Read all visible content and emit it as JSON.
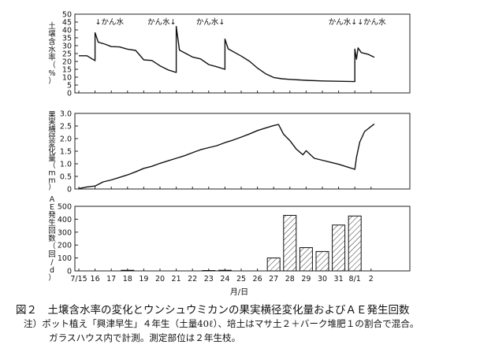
{
  "chart_data": [
    {
      "type": "line",
      "ylabel": "土壌含水率（%）",
      "ylim": [
        0,
        50
      ],
      "yticks": [
        0,
        5,
        10,
        15,
        20,
        25,
        30,
        35,
        40,
        45,
        50
      ],
      "x_range": [
        "7/15",
        "8/2"
      ],
      "annotations": [
        {
          "x": "7/16",
          "text": "↓かん水"
        },
        {
          "x": "7/21",
          "text": "かん水↓"
        },
        {
          "x": "7/24",
          "text": "かん水↓"
        },
        {
          "x": "8/1",
          "text": "かん水↓↓かん水"
        }
      ],
      "series": [
        {
          "points": [
            [
              "7/15",
              23.6
            ],
            [
              "7/15.5",
              23.6
            ],
            [
              "7/16",
              20.5
            ],
            [
              "7/16",
              38.2
            ],
            [
              "7/16.2",
              32.2
            ],
            [
              "7/16.6",
              31.0
            ],
            [
              "7/17",
              29.4
            ],
            [
              "7/17.5",
              29.2
            ],
            [
              "7/18",
              27.8
            ],
            [
              "7/18.5",
              27.0
            ],
            [
              "7/19",
              21.0
            ],
            [
              "7/19.5",
              20.6
            ],
            [
              "7/20",
              17.2
            ],
            [
              "7/20.5",
              14.6
            ],
            [
              "7/21",
              13.0
            ],
            [
              "7/21",
              42.2
            ],
            [
              "7/21.2",
              27.2
            ],
            [
              "7/22",
              22.8
            ],
            [
              "7/22.5",
              21.6
            ],
            [
              "7/23",
              18.0
            ],
            [
              "7/23.5",
              16.6
            ],
            [
              "7/24",
              15.0
            ],
            [
              "7/24",
              34.2
            ],
            [
              "7/24.2",
              28.0
            ],
            [
              "7/25",
              23.4
            ],
            [
              "7/25.5",
              20.2
            ],
            [
              "7/26",
              15.8
            ],
            [
              "7/26.5",
              12.2
            ],
            [
              "7/27",
              9.8
            ],
            [
              "7/27.5",
              9.0
            ],
            [
              "7/28",
              8.6
            ],
            [
              "7/29",
              8.0
            ],
            [
              "7/30",
              7.6
            ],
            [
              "7/31",
              7.4
            ],
            [
              "8/1",
              7.2
            ],
            [
              "8/1",
              27.8
            ],
            [
              "8/1.1",
              21.4
            ],
            [
              "8/1.2",
              28.6
            ],
            [
              "8/1.4",
              25.6
            ],
            [
              "8/1.8",
              24.6
            ],
            [
              "8/2.2",
              22.6
            ]
          ]
        }
      ]
    },
    {
      "type": "line",
      "ylabel": "果実横径変化量（mm）",
      "ylim": [
        0,
        3
      ],
      "yticks": [
        "0",
        "0.5",
        "1.0",
        "1.5",
        "2.0",
        "2.5",
        "3.0"
      ],
      "x_range": [
        "7/15",
        "8/2"
      ],
      "series": [
        {
          "points": [
            [
              "7/15",
              0.02
            ],
            [
              "7/15.5",
              0.08
            ],
            [
              "7/16",
              0.12
            ],
            [
              "7/16.5",
              0.28
            ],
            [
              "7/17",
              0.36
            ],
            [
              "7/17.5",
              0.46
            ],
            [
              "7/18",
              0.56
            ],
            [
              "7/18.5",
              0.68
            ],
            [
              "7/19",
              0.82
            ],
            [
              "7/19.5",
              0.9
            ],
            [
              "7/20",
              1.02
            ],
            [
              "7/20.5",
              1.12
            ],
            [
              "7/21",
              1.22
            ],
            [
              "7/21.5",
              1.32
            ],
            [
              "7/22",
              1.44
            ],
            [
              "7/22.5",
              1.56
            ],
            [
              "7/23",
              1.64
            ],
            [
              "7/23.5",
              1.72
            ],
            [
              "7/24",
              1.84
            ],
            [
              "7/24.5",
              1.94
            ],
            [
              "7/25",
              2.06
            ],
            [
              "7/25.5",
              2.18
            ],
            [
              "7/26",
              2.32
            ],
            [
              "7/26.5",
              2.42
            ],
            [
              "7/27",
              2.52
            ],
            [
              "7/27.3",
              2.56
            ],
            [
              "7/27.6",
              2.18
            ],
            [
              "7/28",
              1.92
            ],
            [
              "7/28.4",
              1.58
            ],
            [
              "7/28.8",
              1.36
            ],
            [
              "7/29",
              1.52
            ],
            [
              "7/29.5",
              1.22
            ],
            [
              "7/30",
              1.14
            ],
            [
              "7/30.5",
              1.06
            ],
            [
              "7/31",
              0.98
            ],
            [
              "7/31.5",
              0.88
            ],
            [
              "8/1",
              0.78
            ],
            [
              "8/1.1",
              1.26
            ],
            [
              "8/1.3",
              1.86
            ],
            [
              "8/1.6",
              2.28
            ],
            [
              "8/2",
              2.48
            ],
            [
              "8/2.2",
              2.58
            ]
          ]
        }
      ]
    },
    {
      "type": "bar",
      "ylabel": "ＡＥ発生回数（回/d）",
      "ylim": [
        0,
        500
      ],
      "yticks": [
        0,
        100,
        200,
        300,
        400,
        500
      ],
      "categories": [
        "7/15",
        "16",
        "17",
        "18",
        "19",
        "20",
        "21",
        "22",
        "23",
        "24",
        "25",
        "26",
        "27",
        "28",
        "29",
        "30",
        "31",
        "8/1",
        "2"
      ],
      "xlabel": "月/日",
      "values": [
        0,
        0,
        0,
        5,
        0,
        0,
        0,
        0,
        3,
        5,
        0,
        0,
        100,
        430,
        180,
        150,
        355,
        425,
        0
      ]
    }
  ],
  "caption": {
    "title": "図２　土壌含水率の変化とウンシュウミカンの果実横径変化量およびＡＥ発生回数",
    "note_line1": "注）ポット植え「興津早生」４年生（土量40ℓ）、培土はマサ土２＋バーク堆肥１の割合で混合。",
    "note_line2": "ガラスハウス内で計測。測定部位は２年生枝。"
  }
}
